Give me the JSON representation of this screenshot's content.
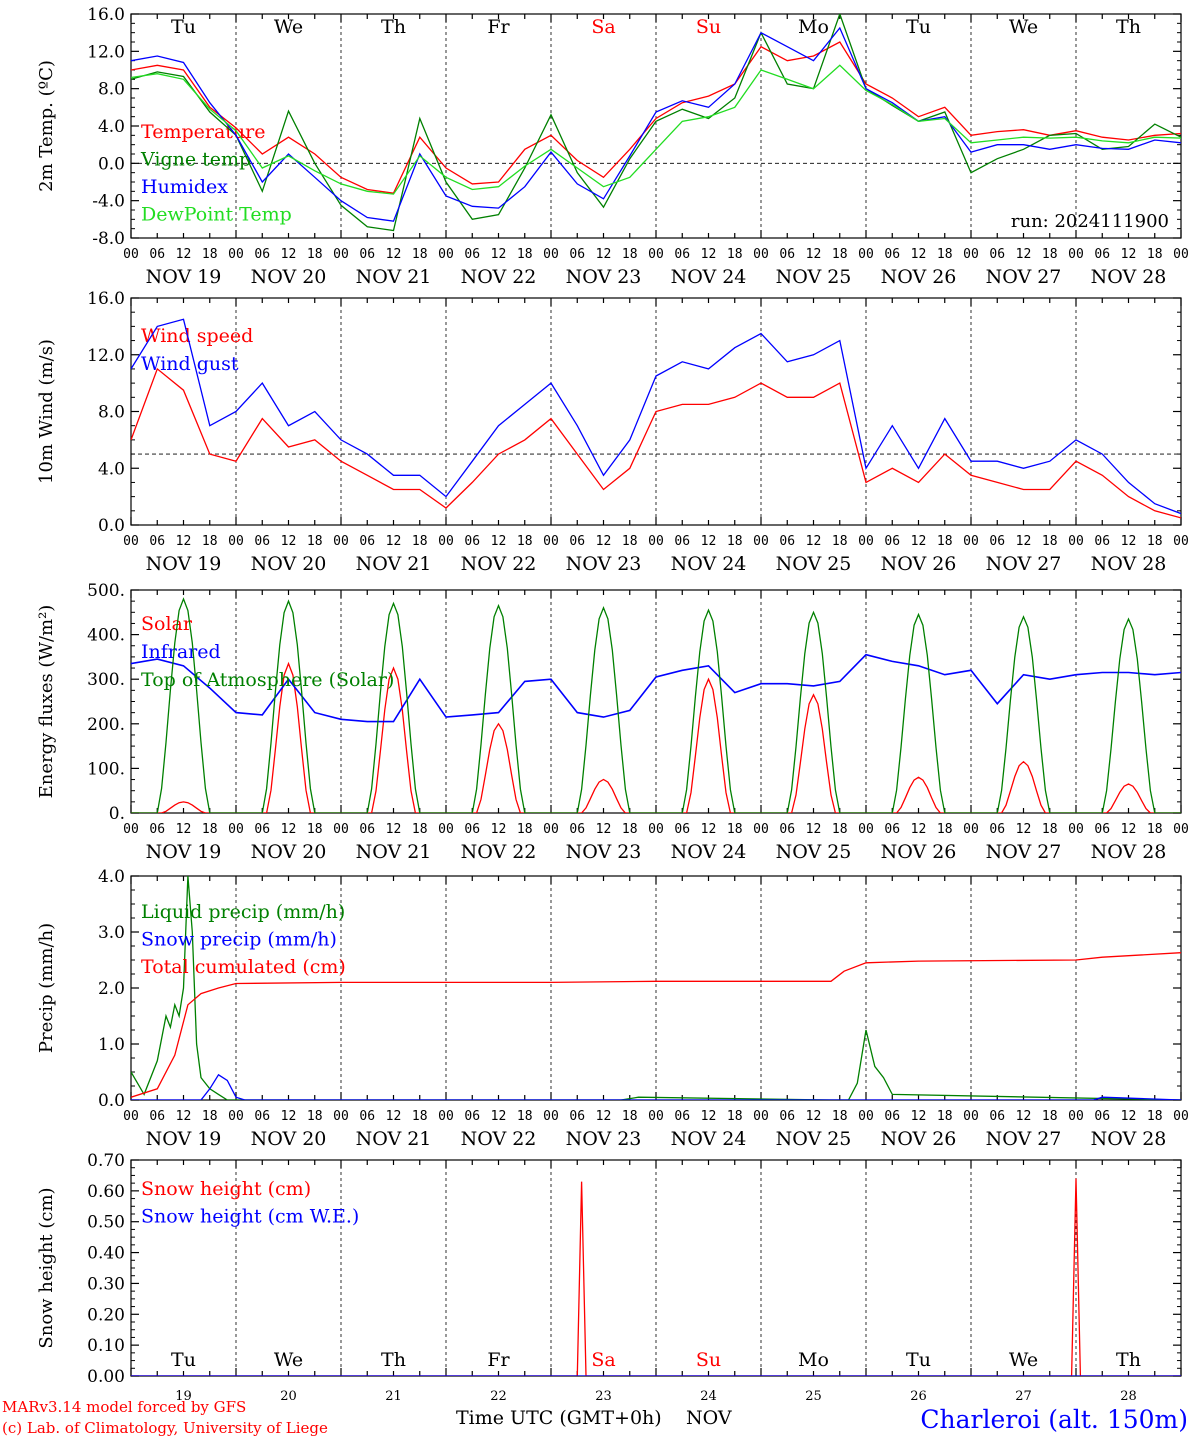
{
  "figure": {
    "location_label": "Charleroi (alt. 150m)",
    "credit_line1": "MARv3.14 model forced by GFS",
    "credit_line2": "(c) Lab. of Climatology, University of Liege",
    "xlabel": "Time UTC (GMT+0h)",
    "xlabel_unit": "NOV",
    "run_label": "run: 2024111900",
    "colors": {
      "red": "#ff0000",
      "green": "#008000",
      "blue": "#0000ff",
      "lightgreen": "#22dd22"
    },
    "weekdays": [
      "Tu",
      "We",
      "Th",
      "Fr",
      "Sa",
      "Su",
      "Mo",
      "Tu",
      "We",
      "Th"
    ],
    "weekday_colors": [
      "#000000",
      "#000000",
      "#000000",
      "#000000",
      "#ff0000",
      "#ff0000",
      "#000000",
      "#000000",
      "#000000",
      "#000000"
    ],
    "date_labels": [
      "NOV 19",
      "NOV 20",
      "NOV 21",
      "NOV 22",
      "NOV 23",
      "NOV 24",
      "NOV 25",
      "NOV 26",
      "NOV 27",
      "NOV 28"
    ],
    "day_numbers": [
      "19",
      "20",
      "21",
      "22",
      "23",
      "24",
      "25",
      "26",
      "27",
      "28"
    ],
    "hour_ticks": [
      "00",
      "06",
      "12",
      "18"
    ],
    "final_hour_tick": "00"
  },
  "chart_data": [
    {
      "type": "line",
      "ylabel": "2m Temp. (ºC)",
      "ylim": [
        -8,
        16
      ],
      "yticks": [
        "-8.0",
        "-4.0",
        "0.0",
        "4.0",
        "8.0",
        "12.0",
        "16.0"
      ],
      "hline": 0,
      "x_unit": "hours since NOV 19 00 UTC",
      "series": [
        {
          "name": "Temperature",
          "color": "#ff0000",
          "x": [
            0,
            6,
            12,
            18,
            24,
            30,
            36,
            42,
            48,
            54,
            60,
            66,
            72,
            78,
            84,
            90,
            96,
            102,
            108,
            114,
            120,
            126,
            132,
            138,
            144,
            150,
            156,
            162,
            168,
            174,
            180,
            186,
            192,
            198,
            204,
            210,
            216,
            222,
            228,
            234,
            240
          ],
          "y": [
            10.0,
            10.5,
            10.0,
            6.0,
            3.8,
            1.0,
            2.8,
            1.0,
            -1.5,
            -2.8,
            -3.2,
            2.8,
            -0.5,
            -2.2,
            -2.0,
            1.5,
            3.0,
            0.3,
            -1.5,
            1.5,
            4.8,
            6.5,
            7.2,
            8.5,
            12.5,
            11.0,
            11.5,
            13.0,
            8.5,
            7.0,
            5.0,
            6.0,
            3.0,
            3.4,
            3.6,
            3.0,
            3.5,
            2.8,
            2.5,
            3.0,
            3.2
          ]
        },
        {
          "name": "Vigne temp",
          "color": "#008000",
          "x": [
            0,
            6,
            12,
            18,
            24,
            30,
            36,
            42,
            48,
            54,
            60,
            66,
            72,
            78,
            84,
            90,
            96,
            102,
            108,
            114,
            120,
            126,
            132,
            138,
            144,
            150,
            156,
            162,
            168,
            174,
            180,
            186,
            192,
            198,
            204,
            210,
            216,
            222,
            228,
            234,
            240
          ],
          "y": [
            9.0,
            9.8,
            9.3,
            5.5,
            3.0,
            -3.0,
            5.6,
            0.0,
            -4.5,
            -6.8,
            -7.2,
            4.8,
            -2.0,
            -6.0,
            -5.5,
            -0.5,
            5.2,
            -1.0,
            -4.7,
            0.5,
            4.5,
            5.8,
            4.8,
            7.0,
            14.0,
            8.5,
            8.0,
            16.0,
            8.0,
            6.2,
            4.5,
            5.5,
            -1.0,
            0.5,
            1.5,
            3.0,
            3.2,
            1.5,
            1.8,
            4.2,
            2.8
          ]
        },
        {
          "name": "Humidex",
          "color": "#0000ff",
          "x": [
            0,
            6,
            12,
            18,
            24,
            30,
            36,
            42,
            48,
            54,
            60,
            66,
            72,
            78,
            84,
            90,
            96,
            102,
            108,
            114,
            120,
            126,
            132,
            138,
            144,
            150,
            156,
            162,
            168,
            174,
            180,
            186,
            192,
            198,
            204,
            210,
            216,
            222,
            228,
            234,
            240
          ],
          "y": [
            11.0,
            11.5,
            10.8,
            6.5,
            3.0,
            -2.0,
            1.0,
            -1.5,
            -4.0,
            -5.8,
            -6.2,
            1.0,
            -3.5,
            -4.6,
            -4.8,
            -2.5,
            1.2,
            -2.2,
            -3.8,
            0.8,
            5.5,
            6.7,
            6.0,
            8.5,
            14.0,
            12.5,
            11.0,
            14.5,
            8.0,
            6.5,
            4.5,
            5.0,
            1.2,
            2.0,
            2.0,
            1.5,
            2.0,
            1.6,
            1.5,
            2.5,
            2.2
          ]
        },
        {
          "name": "DewPoint Temp",
          "color": "#22dd22",
          "x": [
            0,
            6,
            12,
            18,
            24,
            30,
            36,
            42,
            48,
            54,
            60,
            66,
            72,
            78,
            84,
            90,
            96,
            102,
            108,
            114,
            120,
            126,
            132,
            138,
            144,
            150,
            156,
            162,
            168,
            174,
            180,
            186,
            192,
            198,
            204,
            210,
            216,
            222,
            228,
            234,
            240
          ],
          "y": [
            9.2,
            9.6,
            9.0,
            5.8,
            3.5,
            -0.5,
            0.8,
            -0.8,
            -2.2,
            -3.0,
            -3.3,
            0.8,
            -1.5,
            -2.8,
            -2.5,
            -0.3,
            1.5,
            -0.5,
            -2.5,
            -1.5,
            1.5,
            4.5,
            5.0,
            6.0,
            10.0,
            9.0,
            8.0,
            10.5,
            7.8,
            6.3,
            4.5,
            4.8,
            2.2,
            2.5,
            2.8,
            2.7,
            2.8,
            2.4,
            2.2,
            2.8,
            2.7
          ]
        }
      ]
    },
    {
      "type": "line",
      "ylabel": "10m Wind (m/s)",
      "ylim": [
        0,
        16
      ],
      "yticks": [
        "0.0",
        "4.0",
        "8.0",
        "12.0",
        "16.0"
      ],
      "hline": 5,
      "x_unit": "hours since NOV 19 00 UTC",
      "series": [
        {
          "name": "Wind speed",
          "color": "#ff0000",
          "x": [
            0,
            6,
            12,
            18,
            24,
            30,
            36,
            42,
            48,
            54,
            60,
            66,
            72,
            78,
            84,
            90,
            96,
            102,
            108,
            114,
            120,
            126,
            132,
            138,
            144,
            150,
            156,
            162,
            168,
            174,
            180,
            186,
            192,
            198,
            204,
            210,
            216,
            222,
            228,
            234,
            240
          ],
          "y": [
            6.0,
            11.0,
            9.5,
            5.0,
            4.5,
            7.5,
            5.5,
            6.0,
            4.5,
            3.5,
            2.5,
            2.5,
            1.2,
            3.0,
            5.0,
            6.0,
            7.5,
            5.0,
            2.5,
            4.0,
            8.0,
            8.5,
            8.5,
            9.0,
            10.0,
            9.0,
            9.0,
            10.0,
            3.0,
            4.0,
            3.0,
            5.0,
            3.5,
            3.0,
            2.5,
            2.5,
            4.5,
            3.5,
            2.0,
            1.0,
            0.5
          ]
        },
        {
          "name": "Wind gust",
          "color": "#0000ff",
          "x": [
            0,
            6,
            12,
            18,
            24,
            30,
            36,
            42,
            48,
            54,
            60,
            66,
            72,
            78,
            84,
            90,
            96,
            102,
            108,
            114,
            120,
            126,
            132,
            138,
            144,
            150,
            156,
            162,
            168,
            174,
            180,
            186,
            192,
            198,
            204,
            210,
            216,
            222,
            228,
            234,
            240
          ],
          "y": [
            11.0,
            14.0,
            14.5,
            7.0,
            8.0,
            10.0,
            7.0,
            8.0,
            6.0,
            5.0,
            3.5,
            3.5,
            2.0,
            4.5,
            7.0,
            8.5,
            10.0,
            7.0,
            3.5,
            6.0,
            10.5,
            11.5,
            11.0,
            12.5,
            13.5,
            11.5,
            12.0,
            13.0,
            4.0,
            7.0,
            4.0,
            7.5,
            4.5,
            4.5,
            4.0,
            4.5,
            6.0,
            5.0,
            3.0,
            1.5,
            0.8
          ]
        }
      ]
    },
    {
      "type": "line",
      "ylabel": "Energy fluxes (W/m²)",
      "ylim": [
        0,
        500
      ],
      "yticks": [
        "0.",
        "100.",
        "200.",
        "300.",
        "400.",
        "500."
      ],
      "x_unit": "hours since NOV 19 00 UTC",
      "series": [
        {
          "name": "Solar",
          "color": "#ff0000",
          "daily_peak": [
            25,
            335,
            325,
            200,
            75,
            300,
            265,
            80,
            115,
            65
          ]
        },
        {
          "name": "Infrared",
          "color": "#0000ff",
          "x": [
            0,
            6,
            12,
            18,
            24,
            30,
            36,
            42,
            48,
            54,
            60,
            66,
            72,
            78,
            84,
            90,
            96,
            102,
            108,
            114,
            120,
            126,
            132,
            138,
            144,
            150,
            156,
            162,
            168,
            174,
            180,
            186,
            192,
            198,
            204,
            210,
            216,
            222,
            228,
            234,
            240
          ],
          "y": [
            335,
            345,
            330,
            280,
            225,
            220,
            300,
            225,
            210,
            205,
            205,
            300,
            215,
            220,
            225,
            295,
            300,
            225,
            215,
            230,
            305,
            320,
            330,
            270,
            290,
            290,
            285,
            295,
            355,
            340,
            330,
            310,
            320,
            245,
            310,
            300,
            310,
            315,
            315,
            310,
            315
          ]
        },
        {
          "name": "Top of Atmosphere (Solar)",
          "color": "#008000",
          "daily_peak": [
            480,
            475,
            470,
            465,
            460,
            455,
            450,
            445,
            440,
            435
          ]
        }
      ]
    },
    {
      "type": "line",
      "ylabel": "Precip (mm/h)",
      "ylim": [
        0,
        4
      ],
      "yticks": [
        "0.0",
        "1.0",
        "2.0",
        "3.0",
        "4.0"
      ],
      "x_unit": "hours since NOV 19 00 UTC",
      "series": [
        {
          "name": "Liquid precip (mm/h)",
          "color": "#008000",
          "x": [
            0,
            3,
            6,
            8,
            9,
            10,
            11,
            12,
            13,
            14,
            15,
            16,
            18,
            20,
            22,
            24,
            30,
            112,
            116,
            160,
            164,
            166,
            168,
            170,
            172,
            174,
            240
          ],
          "y": [
            0.5,
            0.1,
            0.7,
            1.5,
            1.3,
            1.7,
            1.5,
            2.0,
            4.0,
            3.0,
            1.0,
            0.4,
            0.2,
            0.1,
            0.0,
            0.0,
            0.0,
            0.0,
            0.05,
            0.0,
            0.0,
            0.3,
            1.25,
            0.6,
            0.4,
            0.1,
            0.0
          ]
        },
        {
          "name": "Snow precip (mm/h)",
          "color": "#0000ff",
          "x": [
            0,
            16,
            18,
            20,
            22,
            24,
            26,
            40,
            220,
            222,
            240
          ],
          "y": [
            0.0,
            0.0,
            0.2,
            0.45,
            0.35,
            0.05,
            0.0,
            0.0,
            0.0,
            0.05,
            0.0
          ]
        },
        {
          "name": "Total cumulated (cm)",
          "color": "#ff0000",
          "x": [
            0,
            6,
            10,
            13,
            16,
            20,
            24,
            48,
            96,
            120,
            160,
            163,
            168,
            180,
            216,
            222,
            240
          ],
          "y": [
            0.05,
            0.2,
            0.8,
            1.7,
            1.9,
            2.0,
            2.08,
            2.1,
            2.1,
            2.12,
            2.12,
            2.3,
            2.45,
            2.48,
            2.5,
            2.55,
            2.63
          ]
        }
      ]
    },
    {
      "type": "line",
      "ylabel": "Snow height (cm)",
      "ylim": [
        0,
        0.7
      ],
      "yticks": [
        "0.00",
        "0.10",
        "0.20",
        "0.30",
        "0.40",
        "0.50",
        "0.60",
        "0.70"
      ],
      "x_unit": "hours since NOV 19 00 UTC",
      "series": [
        {
          "name": "Snow height (cm)",
          "color": "#ff0000",
          "x": [
            0,
            102,
            103,
            104,
            215,
            216,
            217,
            240
          ],
          "y": [
            0,
            0,
            0.63,
            0,
            0,
            0.64,
            0,
            0
          ]
        },
        {
          "name": "Snow height (cm W.E.)",
          "color": "#0000ff",
          "x": [
            0,
            240
          ],
          "y": [
            0,
            0
          ]
        }
      ]
    }
  ]
}
